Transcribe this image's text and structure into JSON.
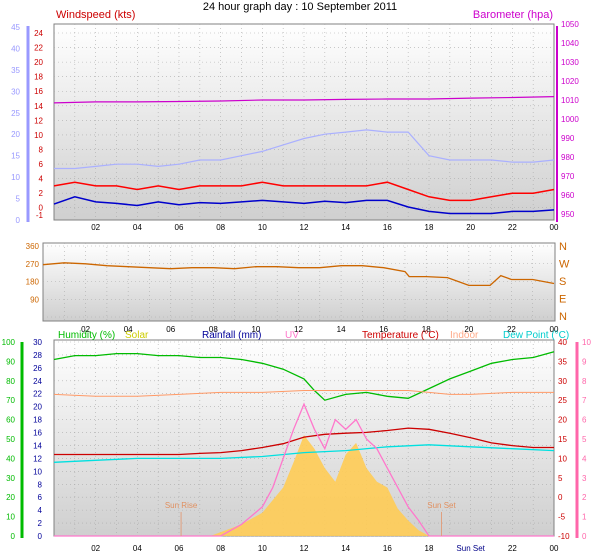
{
  "page_title": "24 hour graph day : 10 September 2011",
  "colors": {
    "wind_avg": "#0000cc",
    "wind_gust": "#ff0000",
    "barometer": "#cc00cc",
    "temp": "#cc0000",
    "indoor": "#ff9966",
    "dew": "#00e0e0",
    "humidity": "#00bb00",
    "solar": "#ffcc55",
    "uv": "#ff77cc",
    "rain": "#000099",
    "wind_dir": "#cc6600",
    "blue_axis": "#9999ff",
    "pink_axis": "#ff66aa",
    "green_axis": "#00bb00"
  },
  "chart_data": [
    {
      "type": "line",
      "panel": "wind-barometer",
      "title": "",
      "legend": [
        "Windspeed (kts)",
        "Barometer (hpa)"
      ],
      "x_ticks": [
        "02",
        "04",
        "06",
        "08",
        "10",
        "12",
        "14",
        "16",
        "18",
        "20",
        "22",
        "00"
      ],
      "xlim": [
        0,
        24
      ],
      "y_left_ticks": [
        "0",
        "5",
        "10",
        "15",
        "20",
        "25",
        "30",
        "35",
        "40",
        "45"
      ],
      "y_left_lim": [
        0,
        45
      ],
      "y_inner_ticks": [
        "-1",
        "0",
        "2",
        "4",
        "6",
        "8",
        "10",
        "12",
        "14",
        "16",
        "18",
        "20",
        "22",
        "24"
      ],
      "y_right_ticks": [
        "950",
        "960",
        "970",
        "980",
        "990",
        "1000",
        "1010",
        "1020",
        "1030",
        "1040",
        "1050"
      ],
      "y_right_lim": [
        950,
        1050
      ],
      "grid": true,
      "series": [
        {
          "name": "Barometer (hpa)",
          "axis": "right",
          "x": [
            0,
            2,
            4,
            6,
            8,
            10,
            12,
            14,
            16,
            18,
            20,
            22,
            24
          ],
          "values": [
            1008.5,
            1009,
            1009,
            1009.2,
            1009.5,
            1010,
            1010,
            1010.3,
            1010.5,
            1010.5,
            1011,
            1011.3,
            1011.8
          ]
        },
        {
          "axis": "left",
          "x": [
            0,
            1,
            2,
            3,
            4,
            5,
            6,
            7,
            8,
            9,
            10,
            11,
            12,
            13,
            14,
            15,
            16,
            17,
            18,
            19,
            20,
            21,
            22,
            23,
            24
          ],
          "values": [
            12,
            12,
            12.5,
            13,
            13,
            12.5,
            13,
            14,
            14,
            15,
            16,
            17.5,
            19,
            20,
            20.5,
            21,
            20.5,
            20.5,
            15,
            14,
            14,
            14,
            13.5,
            13.5,
            14
          ]
        },
        {
          "axis": "inner",
          "x": [
            0,
            1,
            2,
            3,
            4,
            5,
            6,
            7,
            8,
            9,
            10,
            11,
            12,
            13,
            14,
            15,
            16,
            17,
            18,
            19,
            20,
            21,
            22,
            23,
            24
          ],
          "values": [
            3,
            3.5,
            3,
            3,
            2.5,
            3,
            2.5,
            3,
            3,
            3,
            3.5,
            3,
            3,
            3,
            3,
            3,
            3.5,
            2.5,
            1.5,
            1,
            1,
            1.5,
            2,
            2,
            2.5
          ]
        },
        {
          "axis": "inner",
          "x": [
            0,
            1,
            2,
            3,
            4,
            5,
            6,
            7,
            8,
            9,
            10,
            11,
            12,
            13,
            14,
            15,
            16,
            17,
            18,
            19,
            20,
            21,
            22,
            23,
            24
          ],
          "values": [
            0.5,
            1.5,
            0.8,
            0.6,
            0.3,
            0.8,
            0.4,
            0.7,
            0.6,
            0.8,
            1,
            0.8,
            0.6,
            0.9,
            0.7,
            1,
            1,
            0.1,
            -0.5,
            -0.8,
            -0.8,
            -0.8,
            -0.5,
            -0.5,
            -0.3
          ]
        }
      ]
    },
    {
      "type": "line",
      "panel": "wind-direction",
      "title": "",
      "x_ticks": [
        "02",
        "04",
        "06",
        "08",
        "10",
        "12",
        "14",
        "16",
        "18",
        "20",
        "22",
        "00"
      ],
      "xlim": [
        0,
        24
      ],
      "y_ticks": [
        "0",
        "90",
        "180",
        "270",
        "360"
      ],
      "ylim": [
        0,
        360
      ],
      "compass_labels": [
        "N",
        "W",
        "S",
        "E",
        "N"
      ],
      "grid": true,
      "series": [
        {
          "x": [
            0,
            1,
            2,
            3,
            4,
            5,
            6,
            7,
            8,
            9,
            10,
            11,
            12,
            13,
            14,
            15,
            16,
            17,
            17.2,
            18,
            19,
            19.5,
            20,
            21,
            21.5,
            22,
            23,
            24
          ],
          "values": [
            265,
            275,
            270,
            260,
            255,
            250,
            245,
            250,
            250,
            245,
            255,
            255,
            250,
            250,
            260,
            260,
            250,
            230,
            205,
            205,
            200,
            180,
            160,
            160,
            210,
            190,
            190,
            170
          ]
        }
      ]
    },
    {
      "type": "line",
      "panel": "temperature-humidity",
      "title": "",
      "legend": [
        "Humidity (%)",
        "Solar",
        "Rainfall (mm)",
        "UV",
        "Temperature (°C)",
        "Indoor",
        "Dew Point (°C)"
      ],
      "x_ticks": [
        "02",
        "04",
        "06",
        "08",
        "10",
        "12",
        "14",
        "16",
        "18",
        "Sun Set",
        "22",
        "00"
      ],
      "xlim": [
        0,
        24
      ],
      "y_left_ticks": [
        "0",
        "10",
        "20",
        "30",
        "40",
        "50",
        "60",
        "70",
        "80",
        "90",
        "100"
      ],
      "y_left_lim": [
        0,
        100
      ],
      "y_mid_ticks": [
        "0",
        "2",
        "4",
        "6",
        "8",
        "10",
        "12",
        "14",
        "16",
        "18",
        "20",
        "22",
        "24",
        "26",
        "28",
        "30"
      ],
      "y_mid_lim": [
        0,
        30
      ],
      "y_right_ticks": [
        "-10",
        "-5",
        "0",
        "5",
        "10",
        "15",
        "20",
        "25",
        "30",
        "35",
        "40"
      ],
      "y_right_lim": [
        -10,
        40
      ],
      "y_far_right_ticks": [
        "0",
        "1",
        "2",
        "3",
        "4",
        "5",
        "6",
        "7",
        "8",
        "9",
        "10"
      ],
      "y_far_right_lim": [
        0,
        10
      ],
      "annotations": [
        "Sun Rise",
        "Sun Set"
      ],
      "grid": true,
      "series": [
        {
          "name": "Humidity (%)",
          "axis": "left",
          "x": [
            0,
            1,
            2,
            3,
            4,
            5,
            6,
            7,
            8,
            9,
            10,
            11,
            12,
            12.5,
            13,
            14,
            15,
            16,
            17,
            18,
            19,
            20,
            21,
            22,
            23,
            24
          ],
          "values": [
            91,
            93,
            93,
            94,
            94,
            93,
            93,
            92,
            92,
            91,
            89,
            86,
            81,
            75,
            70,
            73,
            74,
            72,
            71,
            76,
            81,
            85,
            89,
            91,
            92,
            95
          ]
        },
        {
          "name": "Temperature (°C)",
          "axis": "right",
          "x": [
            0,
            1,
            2,
            3,
            4,
            5,
            6,
            7,
            8,
            9,
            10,
            11,
            12,
            13,
            14,
            15,
            16,
            17,
            18,
            19,
            20,
            21,
            22,
            23,
            24
          ],
          "values": [
            11,
            11,
            11,
            11,
            11,
            11,
            11,
            11.3,
            11.5,
            12,
            12.8,
            13.8,
            15.5,
            16.2,
            16.5,
            16.7,
            17.2,
            17.8,
            17.5,
            16.5,
            15.3,
            14,
            13.3,
            12.8,
            12.8
          ]
        },
        {
          "name": "Indoor",
          "axis": "right",
          "x": [
            0,
            2,
            4,
            6,
            8,
            10,
            12,
            14,
            16,
            17,
            18,
            19,
            20,
            22,
            24
          ],
          "values": [
            26.5,
            26,
            26,
            26.5,
            27,
            27,
            27.5,
            27.5,
            27.5,
            27.5,
            27,
            26.5,
            26.5,
            27,
            27
          ]
        },
        {
          "name": "Dew Point (°C)",
          "axis": "right",
          "x": [
            0,
            2,
            4,
            6,
            8,
            10,
            12,
            14,
            16,
            18,
            20,
            22,
            24
          ],
          "values": [
            9,
            9.5,
            10,
            10,
            10,
            10.5,
            11.5,
            12,
            13,
            13.5,
            13,
            12.5,
            12
          ]
        },
        {
          "name": "UV",
          "axis": "far-right",
          "x": [
            0,
            8,
            9,
            10,
            10.5,
            11,
            11.5,
            12,
            12.5,
            13,
            13.5,
            14,
            14.5,
            15,
            15.5,
            16,
            17,
            17.5,
            18,
            24
          ],
          "values": [
            0,
            0,
            0.6,
            1.5,
            2.5,
            4,
            5.5,
            6.8,
            5.5,
            4.5,
            6,
            5.5,
            6,
            5,
            4.5,
            3.5,
            1.5,
            0.8,
            0,
            0
          ]
        },
        {
          "name": "Solar",
          "axis": "far-right",
          "x": [
            0,
            7.5,
            8,
            9,
            10,
            11,
            11.5,
            12,
            12.5,
            13,
            13.5,
            14,
            14.5,
            15,
            15.5,
            16,
            16.5,
            17,
            17.5,
            18,
            24
          ],
          "values": [
            0,
            0,
            0.2,
            0.6,
            1.2,
            2.5,
            3.8,
            5.2,
            4.5,
            3.5,
            2.8,
            4.2,
            4.8,
            3.5,
            2.8,
            2.5,
            1.4,
            0.8,
            0.3,
            0,
            0
          ]
        }
      ]
    }
  ]
}
